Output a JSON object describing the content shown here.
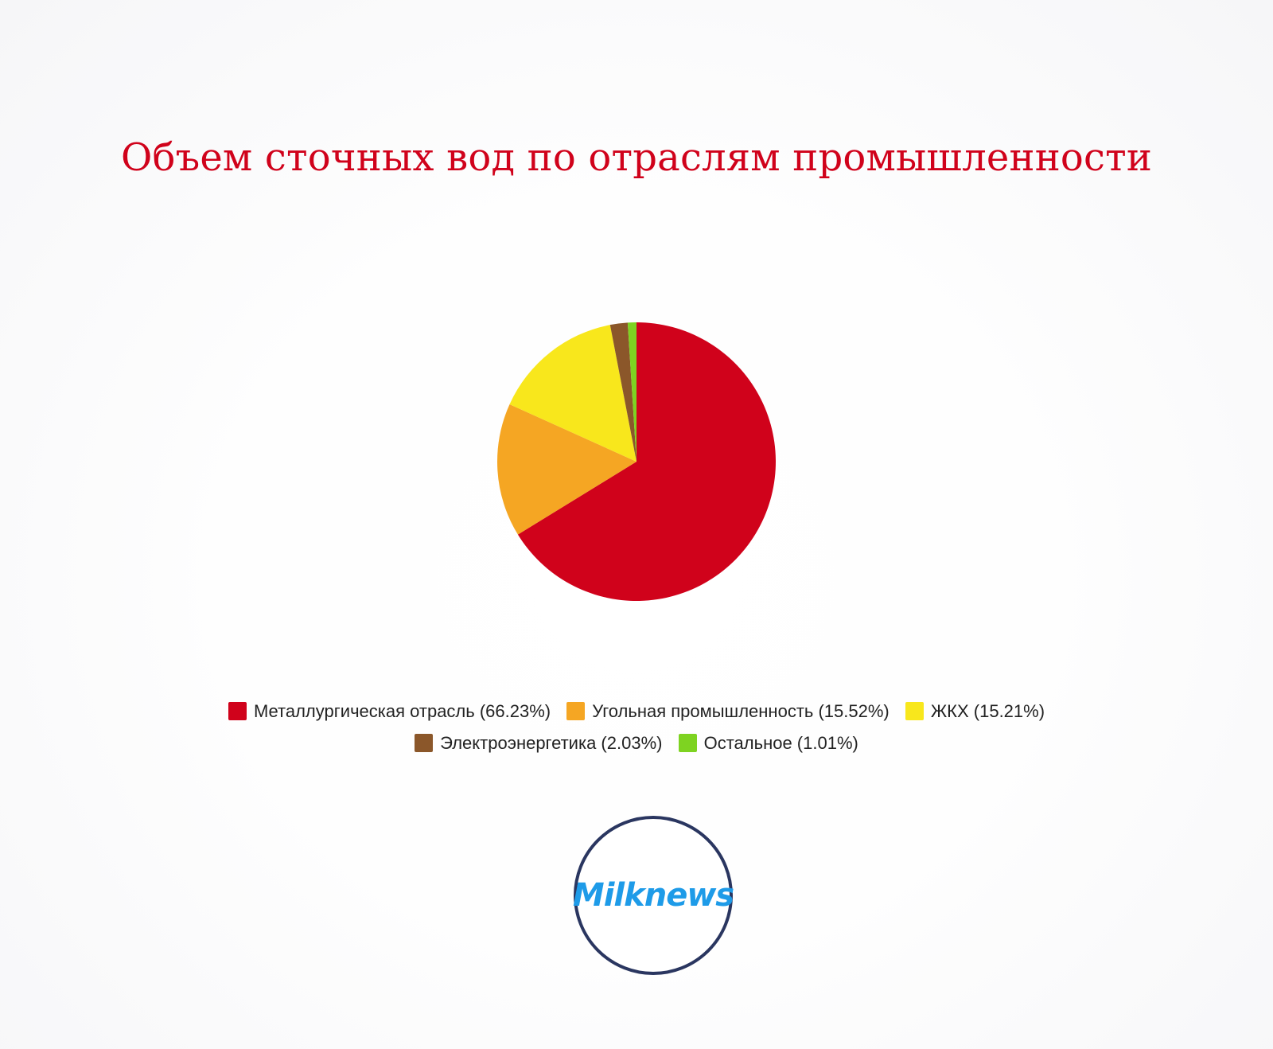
{
  "chart_data": {
    "type": "pie",
    "title": "Объем сточных вод по отраслям промышленности",
    "slices": [
      {
        "label": "Металлургическая отрасль",
        "value": 66.23,
        "display": "Металлургическая отрасль (66.23%)",
        "color": "#d0021b"
      },
      {
        "label": "Угольная промышленность",
        "value": 15.52,
        "display": "Угольная промышленность (15.52%)",
        "color": "#f5a623"
      },
      {
        "label": "ЖКХ",
        "value": 15.21,
        "display": "ЖКХ (15.21%)",
        "color": "#f8e71c"
      },
      {
        "label": "Электроэнергетика",
        "value": 2.03,
        "display": "Электроэнергетика (2.03%)",
        "color": "#8b572a"
      },
      {
        "label": "Остальное",
        "value": 1.01,
        "display": "Остальное (1.01%)",
        "color": "#7ed321"
      }
    ],
    "legend_position": "bottom"
  },
  "logo": {
    "text": "Milknews",
    "border_color": "#2a3660",
    "text_color": "#1e9be8"
  }
}
